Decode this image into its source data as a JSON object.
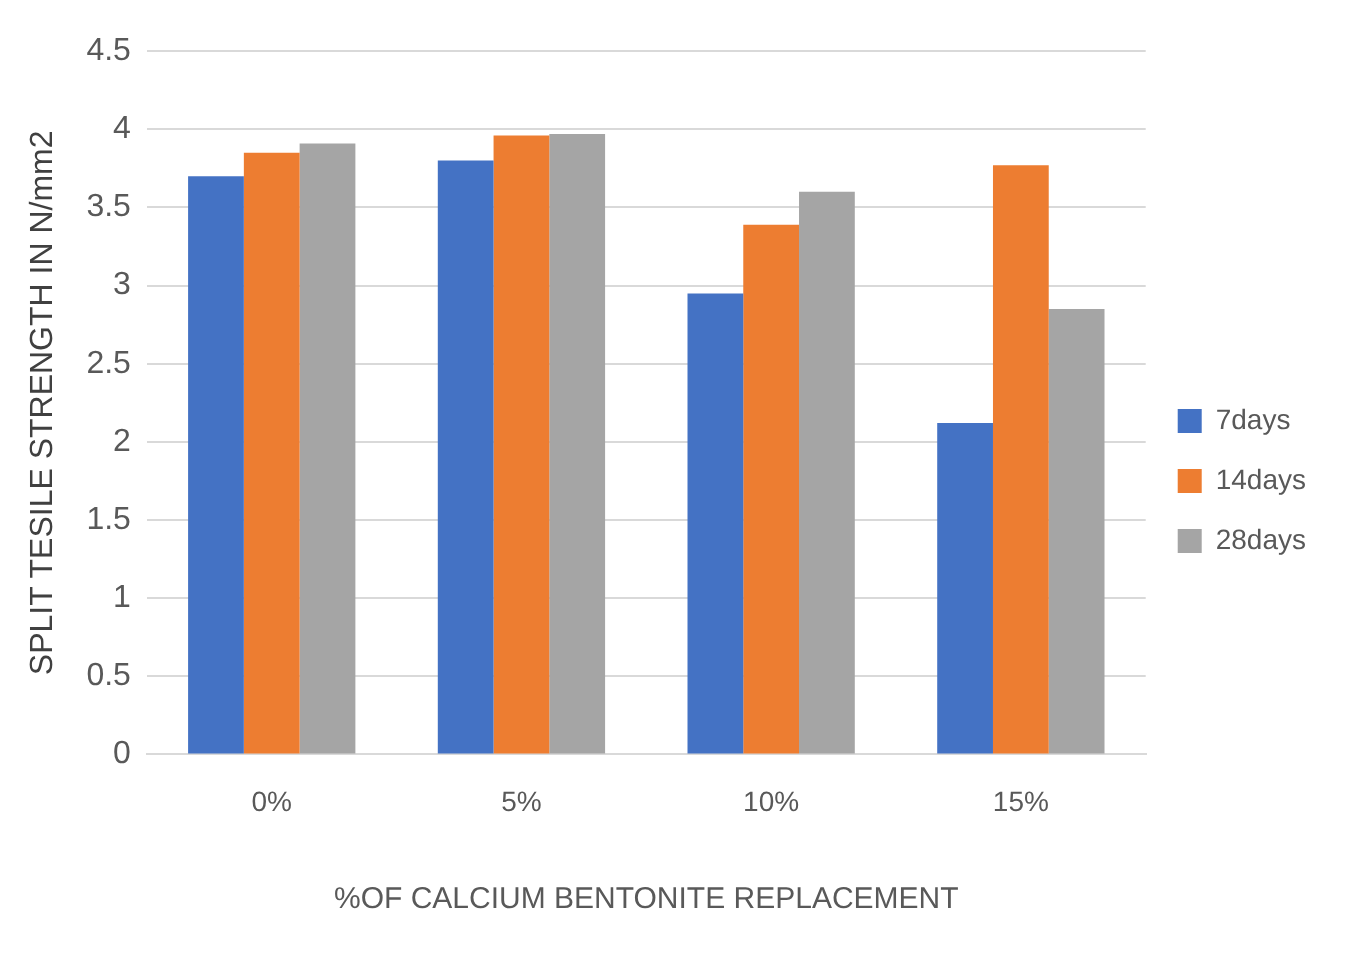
{
  "chart_data": {
    "type": "bar",
    "xlabel": "%OF CALCIUM BENTONITE REPLACEMENT",
    "ylabel": "SPLIT TESILE STRENGTH IN N/mm2",
    "categories": [
      "0%",
      "5%",
      "10%",
      "15%"
    ],
    "series": [
      {
        "name": "7days",
        "color": "#4472c4",
        "values": [
          3.7,
          3.8,
          2.95,
          2.12
        ]
      },
      {
        "name": "14days",
        "color": "#ed7d31",
        "values": [
          3.85,
          3.96,
          3.39,
          3.77
        ]
      },
      {
        "name": "28days",
        "color": "#a5a5a5",
        "values": [
          3.91,
          3.97,
          3.6,
          2.85
        ]
      }
    ],
    "ylim": [
      0,
      4.5
    ],
    "yticks": [
      0,
      0.5,
      1,
      1.5,
      2,
      2.5,
      3,
      3.5,
      4,
      4.5
    ],
    "grid": "y",
    "legend": "right"
  }
}
